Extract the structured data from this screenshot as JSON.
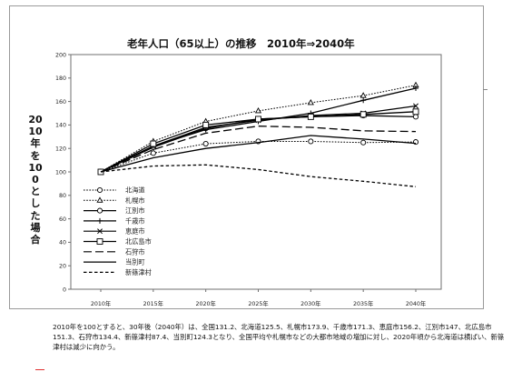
{
  "chart_data": {
    "type": "line",
    "title": "老年人口（65以上）の推移　2010年⇒2040年",
    "ylabel": "2010年を100とした場合",
    "xlabel": "",
    "categories": [
      "2010年",
      "2015年",
      "2020年",
      "2025年",
      "2030年",
      "2035年",
      "2040年"
    ],
    "ylim": [
      0,
      200
    ],
    "yticks": [
      0,
      20,
      40,
      60,
      80,
      100,
      120,
      140,
      160,
      180,
      200
    ],
    "grid": false,
    "legend_position": "left",
    "series": [
      {
        "name": "北海道",
        "style": "dotted-circle",
        "values": [
          100,
          116,
          124,
          126,
          126,
          125,
          125.5
        ]
      },
      {
        "name": "札幌市",
        "style": "dotted-triangle",
        "values": [
          100,
          126,
          143,
          152,
          159,
          165,
          173.9
        ]
      },
      {
        "name": "江別市",
        "style": "solid-circle",
        "values": [
          100,
          121,
          137,
          145,
          147,
          148,
          147
        ]
      },
      {
        "name": "千歳市",
        "style": "solid-plus",
        "values": [
          100,
          122,
          136,
          143,
          150,
          161,
          171.3
        ]
      },
      {
        "name": "恵庭市",
        "style": "solid-x",
        "values": [
          100,
          122,
          138,
          144,
          148,
          150,
          156.2
        ]
      },
      {
        "name": "北広島市",
        "style": "solid-square",
        "values": [
          100,
          124,
          140,
          145,
          147,
          149,
          151.3
        ]
      },
      {
        "name": "石狩市",
        "style": "long-dash",
        "values": [
          100,
          119,
          133,
          139,
          138,
          135,
          134.4
        ]
      },
      {
        "name": "当別町",
        "style": "solid-plain",
        "values": [
          100,
          112,
          120,
          125,
          131,
          128,
          124.3
        ]
      },
      {
        "name": "新篠津村",
        "style": "short-dash",
        "values": [
          100,
          105,
          106,
          102,
          96,
          92,
          87.4
        ]
      }
    ]
  },
  "caption": "2010年を100とすると、30年後（2040年）は、全国131.2、北海道125.5、札幌市173.9、千歳市171.3、恵庭市156.2、江別市147、北広島市151.3、石狩市134.4、新篠津村87.4、当別町124.3となり、全国平均や札幌市などの大都市地域の増加に対し、2020年頃から北海道は横ばい、新篠津村は減少に向かう。",
  "colors": {
    "line": "#000000",
    "axis": "#6f6f6f",
    "background": "#ffffff",
    "accent": "#e03030"
  }
}
